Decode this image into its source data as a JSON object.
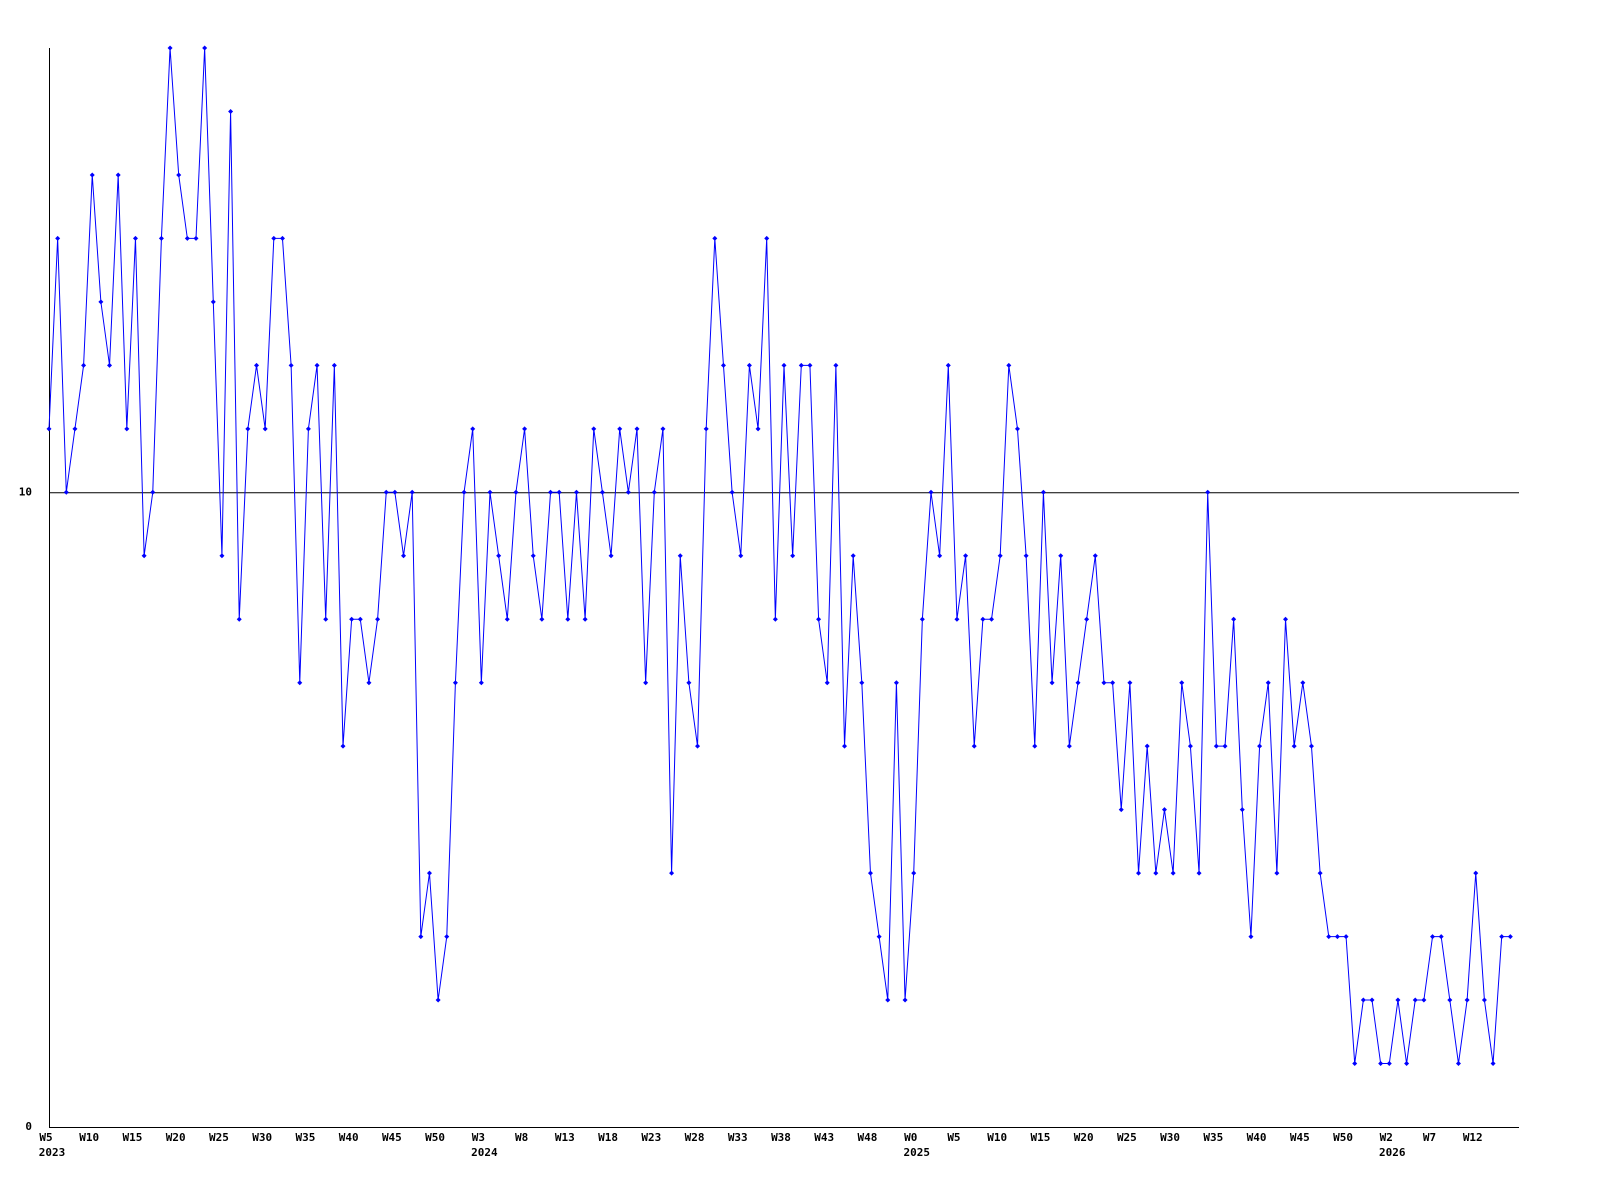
{
  "chart_data": {
    "type": "line",
    "color": "#0000ff",
    "categories": [
      "W5",
      null,
      null,
      null,
      null,
      "W10",
      null,
      null,
      null,
      null,
      "W15",
      null,
      null,
      null,
      null,
      "W20",
      null,
      null,
      null,
      null,
      "W25",
      null,
      null,
      null,
      null,
      "W30",
      null,
      null,
      null,
      null,
      "W35",
      null,
      null,
      null,
      null,
      "W40",
      null,
      null,
      null,
      null,
      "W45",
      null,
      null,
      null,
      null,
      "W50",
      null,
      null,
      null,
      null,
      "W3",
      null,
      null,
      null,
      null,
      "W8",
      null,
      null,
      null,
      null,
      "W13",
      null,
      null,
      null,
      null,
      "W18",
      null,
      null,
      null,
      null,
      "W23",
      null,
      null,
      null,
      null,
      "W28",
      null,
      null,
      null,
      null,
      "W33",
      null,
      null,
      null,
      null,
      "W38",
      null,
      null,
      null,
      null,
      "W43",
      null,
      null,
      null,
      null,
      "W48",
      null,
      null,
      null,
      null,
      "W0",
      null,
      null,
      null,
      null,
      "W5",
      null,
      null,
      null,
      null,
      "W10",
      null,
      null,
      null,
      null,
      "W15",
      null,
      null,
      null,
      null,
      "W20",
      null,
      null,
      null,
      null,
      "W25",
      null,
      null,
      null,
      null,
      "W30",
      null,
      null,
      null,
      null,
      "W35",
      null,
      null,
      null,
      null,
      "W40",
      null,
      null,
      null,
      null,
      "W45",
      null,
      null,
      null,
      null,
      "W50",
      null,
      null,
      null,
      null,
      "W2",
      null,
      null,
      null,
      null,
      "W7",
      null,
      null,
      null,
      null,
      "W12",
      null,
      null,
      null,
      null
    ],
    "years": [
      "2023",
      null,
      null,
      null,
      null,
      null,
      null,
      null,
      null,
      null,
      null,
      null,
      null,
      null,
      null,
      null,
      null,
      null,
      null,
      null,
      null,
      null,
      null,
      null,
      null,
      null,
      null,
      null,
      null,
      null,
      null,
      null,
      null,
      null,
      null,
      null,
      null,
      null,
      null,
      null,
      null,
      null,
      null,
      null,
      null,
      null,
      null,
      null,
      null,
      null,
      "2024",
      null,
      null,
      null,
      null,
      null,
      null,
      null,
      null,
      null,
      null,
      null,
      null,
      null,
      null,
      null,
      null,
      null,
      null,
      null,
      null,
      null,
      null,
      null,
      null,
      null,
      null,
      null,
      null,
      null,
      null,
      null,
      null,
      null,
      null,
      null,
      null,
      null,
      null,
      null,
      null,
      null,
      null,
      null,
      null,
      null,
      null,
      null,
      null,
      null,
      "2025",
      null,
      null,
      null,
      null,
      null,
      null,
      null,
      null,
      null,
      null,
      null,
      null,
      null,
      null,
      null,
      null,
      null,
      null,
      null,
      null,
      null,
      null,
      null,
      null,
      null,
      null,
      null,
      null,
      null,
      null,
      null,
      null,
      null,
      null,
      null,
      null,
      null,
      null,
      null,
      null,
      null,
      null,
      null,
      null,
      null,
      null,
      null,
      null,
      null,
      null,
      null,
      null,
      null,
      null,
      "2026",
      null,
      null,
      null,
      null,
      null,
      null,
      null,
      null,
      null,
      null,
      null,
      null,
      null,
      null
    ],
    "values": [
      11,
      14,
      10,
      11,
      12,
      15,
      13,
      12,
      15,
      11,
      14,
      9,
      10,
      14,
      17,
      15,
      14,
      14,
      17,
      13,
      9,
      16,
      8,
      11,
      12,
      11,
      14,
      14,
      12,
      7,
      11,
      12,
      8,
      12,
      6,
      8,
      8,
      7,
      8,
      10,
      10,
      9,
      10,
      3,
      4,
      2,
      3,
      7,
      10,
      11,
      7,
      10,
      9,
      8,
      10,
      11,
      9,
      8,
      10,
      10,
      8,
      10,
      8,
      11,
      10,
      9,
      11,
      10,
      11,
      7,
      10,
      11,
      4,
      9,
      7,
      6,
      11,
      14,
      12,
      10,
      9,
      12,
      11,
      14,
      8,
      12,
      9,
      12,
      12,
      8,
      7,
      12,
      6,
      9,
      7,
      4,
      3,
      2,
      7,
      2,
      4,
      8,
      10,
      9,
      12,
      8,
      9,
      6,
      8,
      8,
      9,
      12,
      11,
      9,
      6,
      10,
      7,
      9,
      6,
      7,
      8,
      9,
      7,
      7,
      5,
      7,
      4,
      6,
      4,
      5,
      4,
      7,
      6,
      4,
      10,
      6,
      6,
      8,
      5,
      3,
      6,
      7,
      4,
      8,
      6,
      7,
      6,
      4,
      3,
      3,
      3,
      1,
      2,
      2,
      1,
      1,
      2,
      1,
      2,
      2,
      3,
      3,
      2,
      1,
      2,
      4,
      2,
      1,
      3,
      3
    ],
    "ylim": [
      0,
      17
    ],
    "yticks": [
      0,
      10
    ],
    "grid": true
  }
}
